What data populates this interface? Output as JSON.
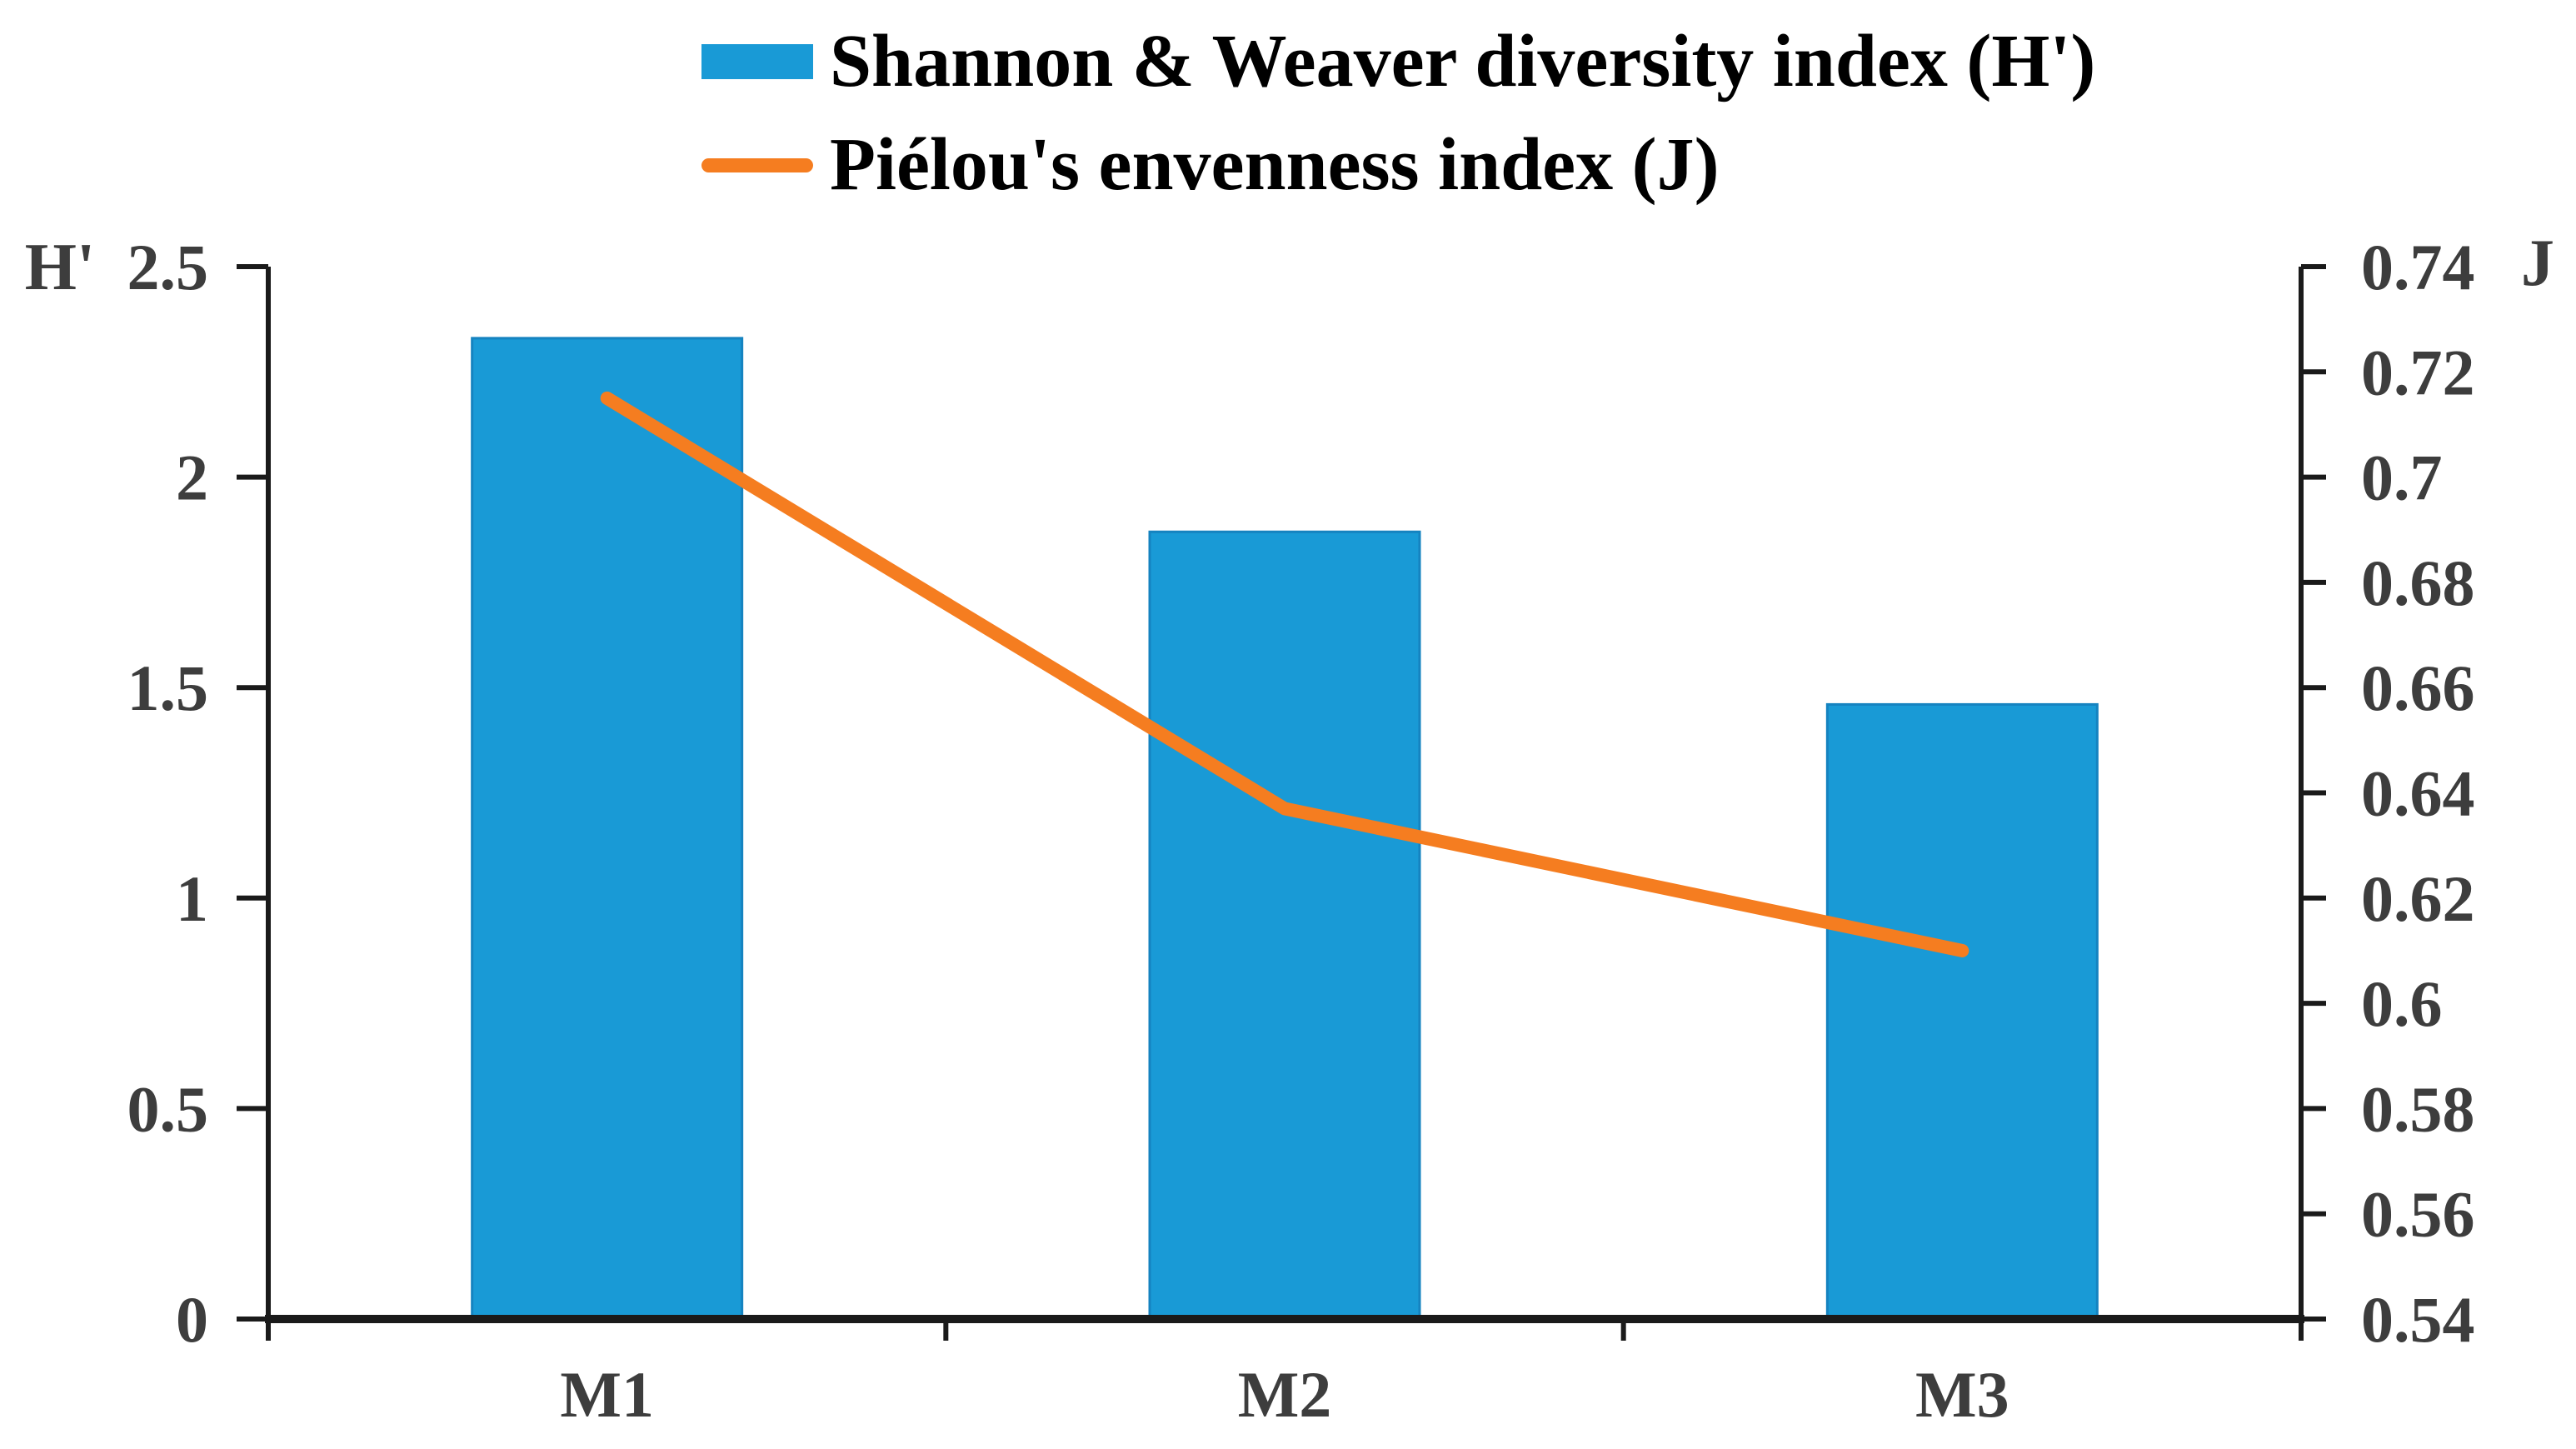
{
  "legend": {
    "items": [
      {
        "label": "Shannon & Weaver diversity index (H')",
        "swatch": "bar",
        "color": "#199ad6"
      },
      {
        "label": "Piélou's envenness index (J)",
        "swatch": "line",
        "color": "#f57d20"
      }
    ]
  },
  "chart_data": {
    "type": "bar",
    "subtype": "dual-axis bar + line combo",
    "categories": [
      "M1",
      "M2",
      "M3"
    ],
    "series": [
      {
        "name": "Shannon & Weaver diversity index (H')",
        "chart": "bar",
        "axis": "left",
        "color": "#199ad6",
        "border_color": "#1583c0",
        "values": [
          2.33,
          1.87,
          1.46
        ]
      },
      {
        "name": "Piélou's envenness index (J)",
        "chart": "line",
        "axis": "right",
        "color": "#f57d20",
        "values": [
          0.715,
          0.637,
          0.61
        ]
      }
    ],
    "left_axis": {
      "title": "H'",
      "min": 0,
      "max": 2.5,
      "ticks": [
        0,
        0.5,
        1,
        1.5,
        2,
        2.5
      ]
    },
    "right_axis": {
      "title": "J",
      "min": 0.54,
      "max": 0.74,
      "ticks": [
        0.54,
        0.56,
        0.58,
        0.6,
        0.62,
        0.64,
        0.66,
        0.68,
        0.7,
        0.72,
        0.74
      ]
    },
    "grid": false,
    "legend_position": "top-center",
    "axis_color": "#1a1a1a",
    "tick_label_color": "#3d3d3d"
  }
}
